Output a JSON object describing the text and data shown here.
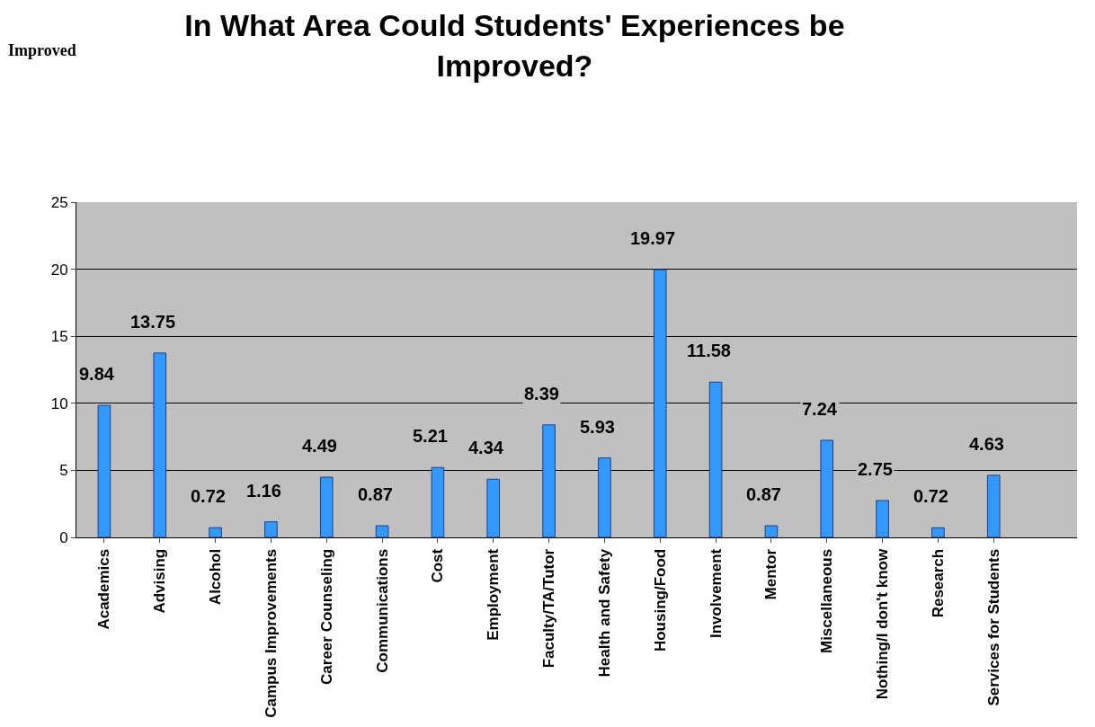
{
  "chart_data": {
    "type": "bar",
    "title": "In What Area Could Students' Experiences be Improved?",
    "annotations": [
      "Improved"
    ],
    "categories": [
      "Academics",
      "Advising",
      "Alcohol",
      "Campus Improvements",
      "Career Counseling",
      "Communications",
      "Cost",
      "Employment",
      "Faculty/TA/Tutor",
      "Health and Safety",
      "Housing/Food",
      "Involvement",
      "Mentor",
      "Miscellaneous",
      "Nothing/I don't know",
      "Research",
      "Services for Students",
      null
    ],
    "values": [
      9.84,
      13.75,
      0.72,
      1.16,
      4.49,
      0.87,
      5.21,
      4.34,
      8.39,
      5.93,
      19.97,
      11.58,
      0.87,
      7.24,
      2.75,
      0.72,
      4.63,
      null
    ],
    "color": "#3399ff",
    "ylim": [
      0,
      25
    ],
    "yticks": [
      0,
      5,
      10,
      15,
      20,
      25
    ],
    "grid": "y",
    "data_labels": true
  }
}
